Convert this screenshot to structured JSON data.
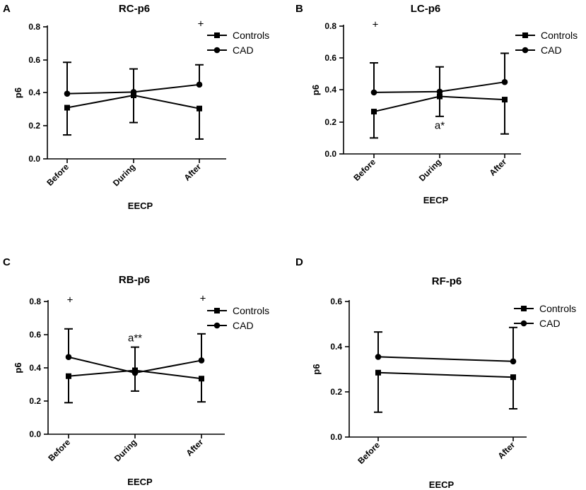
{
  "figure": {
    "description_free": true
  },
  "chart_data": [
    {
      "panel": "A",
      "type": "line",
      "title": "RC-p6",
      "xlabel": "EECP",
      "ylabel": "p6",
      "categories": [
        "Before",
        "During",
        "After"
      ],
      "yticks": [
        "0.0",
        "0.2",
        "0.4",
        "0.6",
        "0.8"
      ],
      "ylim": [
        0,
        0.8
      ],
      "legend": "top-right",
      "series": [
        {
          "name": "Controls",
          "marker": "square",
          "values": [
            0.31,
            0.385,
            0.305
          ],
          "error_low": [
            0.145,
            0.22,
            0.12
          ],
          "error_high": [
            0.31,
            0.385,
            0.305
          ]
        },
        {
          "name": "CAD",
          "marker": "circle",
          "values": [
            0.395,
            0.405,
            0.45
          ],
          "error_low": [
            0.395,
            0.405,
            0.45
          ],
          "error_high": [
            0.585,
            0.545,
            0.57
          ]
        }
      ],
      "annotations": [
        {
          "text": "+",
          "category": "After",
          "y": 0.82
        }
      ]
    },
    {
      "panel": "B",
      "type": "line",
      "title": "LC-p6",
      "xlabel": "EECP",
      "ylabel": "p6",
      "categories": [
        "Before",
        "During",
        "After"
      ],
      "yticks": [
        "0.0",
        "0.2",
        "0.4",
        "0.6",
        "0.8"
      ],
      "ylim": [
        0,
        0.8
      ],
      "legend": "top-right",
      "series": [
        {
          "name": "Controls",
          "marker": "square",
          "values": [
            0.265,
            0.36,
            0.34
          ],
          "error_low": [
            0.1,
            0.235,
            0.125
          ],
          "error_high": [
            0.265,
            0.36,
            0.34
          ]
        },
        {
          "name": "CAD",
          "marker": "circle",
          "values": [
            0.385,
            0.39,
            0.45
          ],
          "error_low": [
            0.385,
            0.39,
            0.45
          ],
          "error_high": [
            0.57,
            0.545,
            0.63
          ]
        }
      ],
      "annotations": [
        {
          "text": "+",
          "category": "Before",
          "y": 0.81
        },
        {
          "text": "a*",
          "category": "During",
          "y": 0.18
        }
      ]
    },
    {
      "panel": "C",
      "type": "line",
      "title": "RB-p6",
      "xlabel": "EECP",
      "ylabel": "p6",
      "categories": [
        "Before",
        "During",
        "After"
      ],
      "yticks": [
        "0.0",
        "0.2",
        "0.4",
        "0.6",
        "0.8"
      ],
      "ylim": [
        0,
        0.8
      ],
      "legend": "top-right",
      "series": [
        {
          "name": "Controls",
          "marker": "square",
          "values": [
            0.35,
            0.385,
            0.335
          ],
          "error_low": [
            0.19,
            0.26,
            0.195
          ],
          "error_high": [
            0.35,
            0.385,
            0.335
          ]
        },
        {
          "name": "CAD",
          "marker": "circle",
          "values": [
            0.465,
            0.37,
            0.445
          ],
          "error_low": [
            0.465,
            0.37,
            0.445
          ],
          "error_high": [
            0.635,
            0.525,
            0.605
          ]
        }
      ],
      "annotations": [
        {
          "text": "+",
          "category": "Before",
          "y": 0.81
        },
        {
          "text": "+",
          "category": "After",
          "y": 0.82
        },
        {
          "text": "a**",
          "category": "During",
          "y": 0.58
        }
      ]
    },
    {
      "panel": "D",
      "type": "line",
      "title": "RF-p6",
      "xlabel": "EECP",
      "ylabel": "p6",
      "categories": [
        "Before",
        "After"
      ],
      "yticks": [
        "0.0",
        "0.2",
        "0.4",
        "0.6"
      ],
      "ylim": [
        0,
        0.6
      ],
      "legend": "top-right",
      "series": [
        {
          "name": "Controls",
          "marker": "square",
          "values": [
            0.285,
            0.265
          ],
          "error_low": [
            0.11,
            0.125
          ],
          "error_high": [
            0.285,
            0.265
          ]
        },
        {
          "name": "CAD",
          "marker": "circle",
          "values": [
            0.355,
            0.335
          ],
          "error_low": [
            0.355,
            0.335
          ],
          "error_high": [
            0.465,
            0.485
          ]
        }
      ],
      "annotations": []
    }
  ]
}
